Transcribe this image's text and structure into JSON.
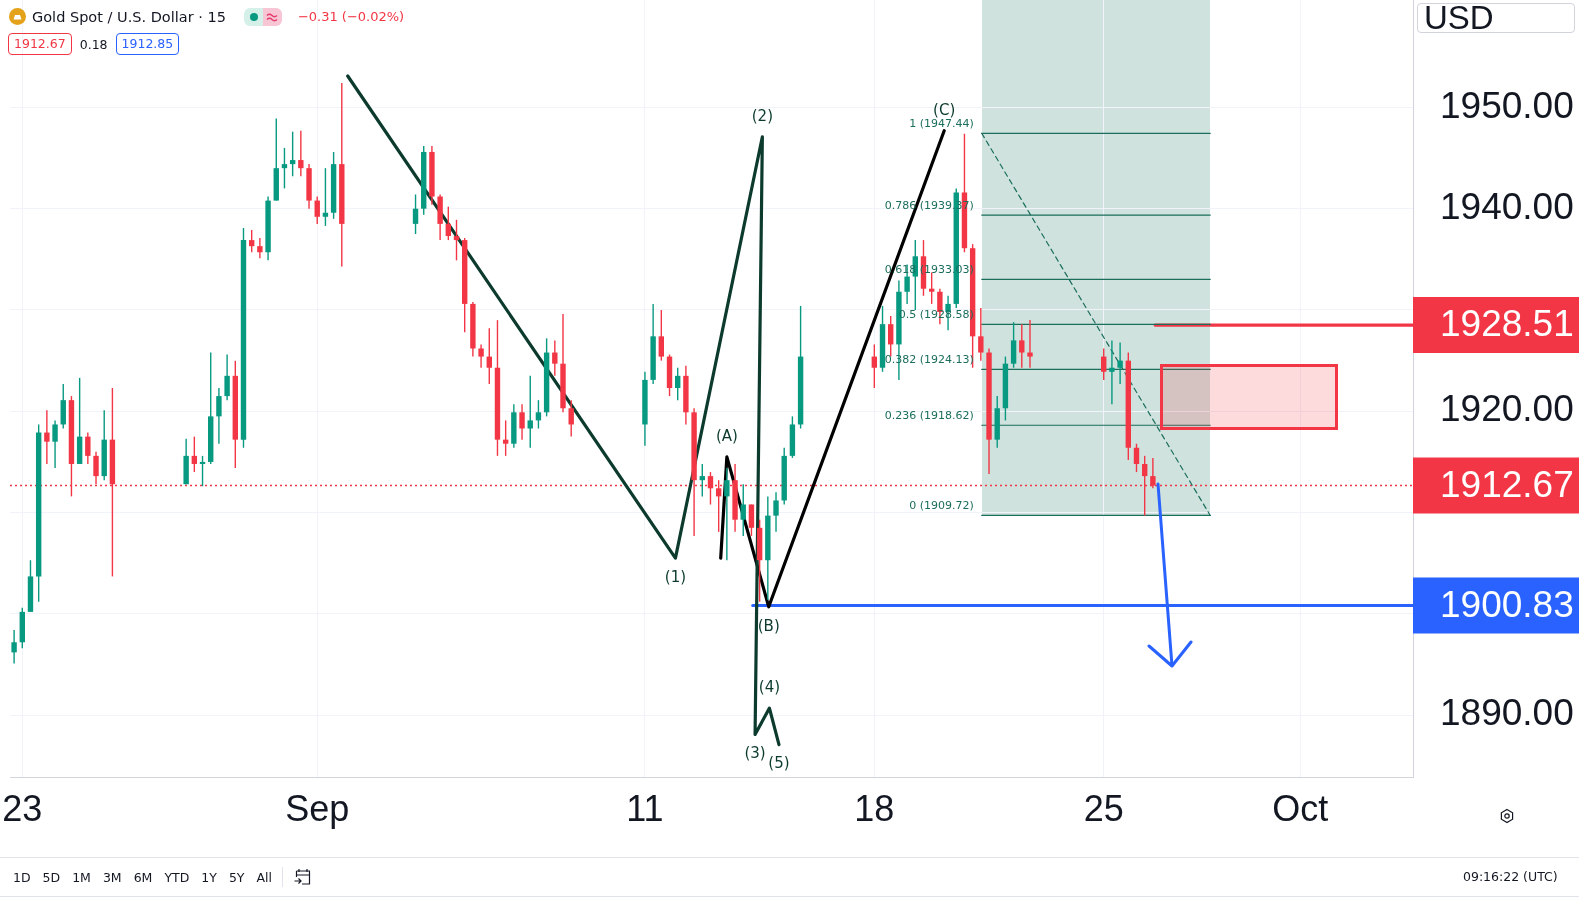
{
  "chart_data": {
    "type": "candlestick",
    "title": "Gold Spot / U.S. Dollar · 15",
    "ylabel": "USD",
    "x": [
      "--08-22T18:00",
      "--08-23T00:00",
      "--08-23T06:00",
      "--08-23T12:00",
      "--08-23T18:00",
      "--08-24T00:00",
      "--08-24T06:00",
      "--08-24T12:00",
      "--08-24T18:00",
      "--08-25T00:00",
      "--08-25T06:00",
      "--08-25T12:00",
      "--08-25T18:00",
      "--08-28T00:00",
      "--08-28T06:00",
      "--08-28T12:00",
      "--08-28T18:00",
      "--08-29T00:00",
      "--08-29T06:00",
      "--08-29T12:00",
      "--08-29T18:00",
      "--08-30T00:00",
      "--08-30T06:00",
      "--08-30T12:00",
      "--08-30T18:00",
      "--08-31T00:00",
      "--08-31T06:00",
      "--08-31T12:00",
      "--08-31T18:00",
      "--09-01T00:00",
      "--09-01T06:00",
      "--09-01T12:00",
      "--09-01T18:00",
      "--09-04T00:00",
      "--09-04T06:00",
      "--09-04T12:00",
      "--09-04T18:00",
      "--09-05T00:00",
      "--09-05T06:00",
      "--09-05T12:00",
      "--09-05T18:00",
      "--09-06T00:00",
      "--09-06T06:00",
      "--09-06T12:00",
      "--09-06T18:00",
      "--09-07T00:00",
      "--09-07T06:00",
      "--09-07T12:00",
      "--09-07T18:00",
      "--09-08T00:00",
      "--09-08T06:00",
      "--09-08T12:00",
      "--09-08T18:00",
      "--09-11T00:00",
      "--09-11T06:00",
      "--09-11T12:00",
      "--09-11T18:00",
      "--09-12T00:00",
      "--09-12T06:00",
      "--09-12T12:00",
      "--09-12T18:00",
      "--09-13T00:00",
      "--09-13T06:00",
      "--09-13T12:00",
      "--09-13T18:00",
      "--09-14T00:00",
      "--09-14T06:00",
      "--09-14T12:00",
      "--09-14T18:00",
      "--09-15T00:00",
      "--09-15T06:00",
      "--09-15T12:00",
      "--09-15T18:00",
      "--09-18T00:00",
      "--09-18T06:00",
      "--09-18T12:00",
      "--09-18T18:00",
      "--09-19T00:00",
      "--09-19T06:00",
      "--09-19T12:00",
      "--09-19T18:00",
      "--09-20T00:00",
      "--09-20T06:00",
      "--09-20T12:00",
      "--09-20T18:00",
      "--09-21T00:00",
      "--09-21T06:00",
      "--09-21T12:00",
      "--09-21T18:00",
      "--09-22T00:00",
      "--09-22T06:00",
      "--09-22T12:00",
      "--09-22T18:00",
      "--09-25T00:00",
      "--09-25T06:00",
      "--09-25T12:00",
      "--09-25T18:00",
      "--09-26T00:00",
      "--09-26T06:00",
      "--09-26T12:00"
    ],
    "ohlc": [
      [
        1896.2,
        1898.4,
        1895.1,
        1897.2
      ],
      [
        1897.2,
        1900.6,
        1896.6,
        1900.2
      ],
      [
        1900.2,
        1905.3,
        1900.2,
        1903.7
      ],
      [
        1903.7,
        1918.7,
        1901.2,
        1917.9
      ],
      [
        1917.9,
        1920.1,
        1914.8,
        1917.0
      ],
      [
        1917.0,
        1919.1,
        1914.4,
        1918.7
      ],
      [
        1918.7,
        1922.7,
        1918.3,
        1921.1
      ],
      [
        1921.1,
        1921.5,
        1911.6,
        1914.8
      ],
      [
        1914.8,
        1923.3,
        1914.8,
        1917.5
      ],
      [
        1917.5,
        1917.9,
        1914.8,
        1915.6
      ],
      [
        1915.6,
        1916.0,
        1912.8,
        1913.6
      ],
      [
        1913.6,
        1920.1,
        1913.2,
        1917.2
      ],
      [
        1917.2,
        1922.3,
        1903.7,
        1912.8
      ],
      [
        1912.8,
        1917.3,
        1912.8,
        1915.6
      ],
      [
        1915.6,
        1917.5,
        1914.0,
        1914.8
      ],
      [
        1914.8,
        1915.6,
        1912.6,
        1915.0
      ],
      [
        1915.0,
        1925.8,
        1914.8,
        1919.5
      ],
      [
        1919.5,
        1922.3,
        1916.8,
        1921.5
      ],
      [
        1921.5,
        1925.6,
        1921.1,
        1923.5
      ],
      [
        1923.5,
        1925.0,
        1914.4,
        1917.2
      ],
      [
        1917.2,
        1938.1,
        1916.4,
        1936.9
      ],
      [
        1936.9,
        1937.9,
        1935.7,
        1936.3
      ],
      [
        1936.3,
        1937.1,
        1935.1,
        1935.7
      ],
      [
        1935.7,
        1941.2,
        1934.9,
        1940.8
      ],
      [
        1940.8,
        1948.9,
        1940.8,
        1944.0
      ],
      [
        1944.0,
        1946.0,
        1942.0,
        1944.4
      ],
      [
        1944.4,
        1947.6,
        1943.2,
        1944.8
      ],
      [
        1944.8,
        1947.7,
        1943.2,
        1944.0
      ],
      [
        1944.0,
        1944.4,
        1940.0,
        1940.8
      ],
      [
        1940.8,
        1941.2,
        1938.5,
        1939.2
      ],
      [
        1939.2,
        1944.0,
        1938.3,
        1939.6
      ],
      [
        1939.6,
        1945.6,
        1939.0,
        1944.4
      ],
      [
        1944.4,
        1952.4,
        1934.3,
        1938.5
      ],
      [
        1938.5,
        1941.4,
        1937.5,
        1940.0
      ],
      [
        1940.0,
        1946.2,
        1939.4,
        1945.6
      ],
      [
        1945.6,
        1946.2,
        1940.4,
        1941.2
      ],
      [
        1941.2,
        1941.4,
        1936.9,
        1938.5
      ],
      [
        1938.5,
        1940.2,
        1936.9,
        1937.3
      ],
      [
        1937.3,
        1938.9,
        1934.9,
        1936.9
      ],
      [
        1936.9,
        1937.1,
        1927.8,
        1930.6
      ],
      [
        1930.6,
        1930.8,
        1925.4,
        1926.2
      ],
      [
        1926.2,
        1926.6,
        1924.3,
        1925.4
      ],
      [
        1925.4,
        1928.2,
        1922.7,
        1924.3
      ],
      [
        1924.3,
        1929.0,
        1915.6,
        1917.2
      ],
      [
        1917.2,
        1919.1,
        1915.6,
        1916.8
      ],
      [
        1916.8,
        1920.7,
        1916.4,
        1919.9
      ],
      [
        1919.9,
        1920.7,
        1917.2,
        1918.3
      ],
      [
        1918.3,
        1923.5,
        1916.4,
        1919.1
      ],
      [
        1919.1,
        1921.1,
        1918.3,
        1919.9
      ],
      [
        1919.9,
        1927.2,
        1919.5,
        1925.8
      ],
      [
        1925.8,
        1927.0,
        1923.5,
        1924.7
      ],
      [
        1924.7,
        1929.6,
        1919.9,
        1920.3
      ],
      [
        1920.3,
        1921.1,
        1917.5,
        1918.7
      ],
      [
        1918.7,
        1923.9,
        1916.6,
        1923.1
      ],
      [
        1923.1,
        1930.6,
        1922.7,
        1927.4
      ],
      [
        1927.4,
        1930.0,
        1925.0,
        1925.4
      ],
      [
        1925.4,
        1925.6,
        1921.5,
        1922.3
      ],
      [
        1922.3,
        1924.3,
        1921.1,
        1923.5
      ],
      [
        1923.5,
        1924.5,
        1918.7,
        1919.9
      ],
      [
        1919.9,
        1920.3,
        1907.7,
        1913.2
      ],
      [
        1913.2,
        1914.8,
        1911.6,
        1913.6
      ],
      [
        1913.6,
        1914.0,
        1910.8,
        1912.4
      ],
      [
        1912.4,
        1913.2,
        1908.1,
        1911.6
      ],
      [
        1911.6,
        1914.4,
        1905.3,
        1913.2
      ],
      [
        1913.2,
        1914.8,
        1908.1,
        1909.3
      ],
      [
        1909.3,
        1912.8,
        1907.7,
        1910.8
      ],
      [
        1910.8,
        1910.8,
        1907.7,
        1908.5
      ],
      [
        1908.5,
        1909.3,
        1901.2,
        1905.3
      ],
      [
        1905.3,
        1911.6,
        1901.4,
        1909.7
      ],
      [
        1909.7,
        1912.0,
        1908.1,
        1911.2
      ],
      [
        1911.2,
        1916.4,
        1910.8,
        1915.6
      ],
      [
        1915.6,
        1919.5,
        1915.4,
        1918.7
      ],
      [
        1918.7,
        1930.4,
        1918.3,
        1925.4
      ],
      [
        1925.4,
        1926.6,
        1922.3,
        1924.3
      ],
      [
        1924.3,
        1930.4,
        1923.9,
        1928.6
      ],
      [
        1928.6,
        1929.4,
        1925.4,
        1926.6
      ],
      [
        1926.6,
        1932.9,
        1923.1,
        1931.8
      ],
      [
        1931.8,
        1934.5,
        1930.6,
        1933.3
      ],
      [
        1933.3,
        1936.9,
        1930.0,
        1935.3
      ],
      [
        1935.3,
        1936.9,
        1931.4,
        1932.1
      ],
      [
        1932.1,
        1933.7,
        1930.6,
        1931.8
      ],
      [
        1931.8,
        1932.1,
        1928.6,
        1929.8
      ],
      [
        1929.8,
        1931.4,
        1928.0,
        1930.6
      ],
      [
        1930.6,
        1942.0,
        1930.2,
        1941.6
      ],
      [
        1941.6,
        1947.4,
        1935.7,
        1936.1
      ],
      [
        1936.1,
        1936.5,
        1924.3,
        1927.4
      ],
      [
        1927.4,
        1930.2,
        1925.0,
        1925.8
      ],
      [
        1925.8,
        1926.2,
        1913.8,
        1917.2
      ],
      [
        1917.2,
        1921.5,
        1916.4,
        1920.3
      ],
      [
        1920.3,
        1925.4,
        1919.1,
        1924.7
      ],
      [
        1924.7,
        1928.8,
        1924.3,
        1927.0
      ],
      [
        1927.0,
        1928.6,
        1924.3,
        1925.8
      ],
      [
        1925.8,
        1929.0,
        1924.3,
        1925.4
      ],
      [
        1925.4,
        1926.2,
        1923.1,
        1923.9
      ],
      [
        1923.9,
        1927.0,
        1920.7,
        1924.3
      ],
      [
        1924.3,
        1926.8,
        1922.7,
        1925.0
      ],
      [
        1925.0,
        1925.8,
        1915.2,
        1916.4
      ],
      [
        1916.4,
        1916.8,
        1914.0,
        1914.8
      ],
      [
        1914.8,
        1915.6,
        1909.7,
        1913.6
      ],
      [
        1913.6,
        1915.4,
        1912.4,
        1912.67
      ]
    ],
    "colors": [
      "#089981",
      "#089981",
      "#089981",
      "#089981",
      "#f23645",
      "#089981",
      "#089981",
      "#f23645",
      "#089981",
      "#f23645",
      "#f23645",
      "#089981",
      "#f23645",
      "#089981",
      "#f23645",
      "#089981",
      "#089981",
      "#089981",
      "#089981",
      "#f23645",
      "#089981",
      "#f23645",
      "#f23645",
      "#089981",
      "#089981",
      "#089981",
      "#089981",
      "#f23645",
      "#f23645",
      "#f23645",
      "#089981",
      "#089981",
      "#f23645",
      "#089981",
      "#089981",
      "#f23645",
      "#f23645",
      "#f23645",
      "#f23645",
      "#f23645",
      "#f23645",
      "#f23645",
      "#f23645",
      "#f23645",
      "#f23645",
      "#089981",
      "#f23645",
      "#089981",
      "#089981",
      "#089981",
      "#f23645",
      "#f23645",
      "#f23645",
      "#089981",
      "#089981",
      "#f23645",
      "#f23645",
      "#089981",
      "#f23645",
      "#f23645",
      "#089981",
      "#f23645",
      "#f23645",
      "#089981",
      "#f23645",
      "#089981",
      "#f23645",
      "#f23645",
      "#089981",
      "#089981",
      "#089981",
      "#089981",
      "#089981",
      "#f23645",
      "#089981",
      "#f23645",
      "#089981",
      "#089981",
      "#089981",
      "#f23645",
      "#f23645",
      "#f23645",
      "#089981",
      "#089981",
      "#f23645",
      "#f23645",
      "#f23645",
      "#f23645",
      "#089981",
      "#089981",
      "#089981",
      "#f23645",
      "#f23645",
      "#f23645",
      "#089981",
      "#089981",
      "#f23645",
      "#f23645",
      "#f23645",
      "#f23645"
    ],
    "series": [
      {
        "type": "line",
        "x": [
          "--09-01T22:20",
          "--09-11T22:20",
          "--09-14T14:00",
          "--09-14T08:40",
          "--09-14T19:10",
          "--09-15T02:10"
        ],
        "values": [
          1953.1,
          1905.5,
          1947.1,
          1888.1,
          1890.7,
          1887.1
        ],
        "color": "#0c3b2e"
      },
      {
        "type": "line",
        "x": [
          "--09-13T07:30",
          "--09-13T12:00",
          "--09-14T18:40",
          "--09-20T03:10"
        ],
        "values": [
          1905.5,
          1915.5,
          1900.7,
          1947.7
        ],
        "color": "#000000"
      },
      {
        "type": "line",
        "name": "1 (1947.44)",
        "x": [
          "--09-21T06:40",
          "--09-28T06:00"
        ],
        "values": [
          1947.44,
          1947.44
        ],
        "color": "#1b6e5c"
      },
      {
        "type": "line",
        "name": "0.786 (1939.37)",
        "x": [
          "--09-21T06:40",
          "--09-28T06:00"
        ],
        "values": [
          1939.37,
          1939.37
        ],
        "color": "#1b6e5c"
      },
      {
        "type": "line",
        "name": "0.618 (1933.03)",
        "x": [
          "--09-21T06:40",
          "--09-28T06:00"
        ],
        "values": [
          1933.03,
          1933.03
        ],
        "color": "#1b6e5c"
      },
      {
        "type": "line",
        "name": "0.5 (1928.58)",
        "x": [
          "--09-21T06:40",
          "--09-28T06:00"
        ],
        "values": [
          1928.58,
          1928.58
        ],
        "color": "#1b6e5c"
      },
      {
        "type": "line",
        "name": "0.382 (1924.13)",
        "x": [
          "--09-21T06:40",
          "--09-28T06:00"
        ],
        "values": [
          1924.13,
          1924.13
        ],
        "color": "#1b6e5c"
      },
      {
        "type": "line",
        "name": "0.236 (1918.62)",
        "x": [
          "--09-21T06:40",
          "--09-28T06:00"
        ],
        "values": [
          1918.62,
          1918.62
        ],
        "color": "#1b6e5c"
      },
      {
        "type": "line",
        "name": "0 (1909.72)",
        "x": [
          "--09-21T06:40",
          "--09-28T06:00"
        ],
        "values": [
          1909.72,
          1909.72
        ],
        "color": "#1b6e5c"
      },
      {
        "type": "line",
        "x": [
          "--09-21T06:40",
          "--09-28T06:00"
        ],
        "values": [
          1947.44,
          1909.72
        ],
        "color": "#1b6e5c",
        "line_style": "dashed"
      },
      {
        "type": "line",
        "x": [
          "--09-26T13:40",
          "--10-04T10:30"
        ],
        "values": [
          1928.51,
          1928.51
        ],
        "color": "#f23645",
        "value_labels": [
          null,
          "1928.51"
        ]
      },
      {
        "type": "line",
        "x": [
          "--09-14T07:00",
          "--10-04T10:30"
        ],
        "values": [
          1900.83,
          1900.83
        ],
        "color": "#2962ff",
        "value_labels": [
          null,
          "1900.83"
        ]
      }
    ],
    "ref_lines": [
      {
        "axis": "y",
        "value": 1912.67,
        "label": "1912.67",
        "color": "#f23645",
        "line_style": "dotted"
      }
    ],
    "annotations": [
      "−0.31 (−0.02%)",
      "1912.67",
      "0.18",
      "1912.85",
      "1D",
      "5D",
      "1M",
      "3M",
      "6M",
      "YTD",
      "1Y",
      "5Y",
      "All",
      "09:16:22 (UTC)",
      {
        "text": "(1)",
        "x": "--09-11T22:20",
        "y": 1905.5
      },
      {
        "text": "(2)",
        "x": "--09-14T14:00",
        "y": 1947.1
      },
      {
        "text": "(3)",
        "x": "--09-14T08:40",
        "y": 1888.1
      },
      {
        "text": "(4)",
        "x": "--09-14T19:10",
        "y": 1890.7
      },
      {
        "text": "(5)",
        "x": "--09-15T02:10",
        "y": 1887.1
      },
      {
        "text": "(A)",
        "x": "--09-13T12:00",
        "y": 1915.5
      },
      {
        "text": "(B)",
        "x": "--09-14T18:40",
        "y": 1900.7
      },
      {
        "text": "(C)",
        "x": "--09-20T03:10",
        "y": 1947.7
      }
    ],
    "xlim": [
      "--08-22T15:00",
      "--10-04T10:30"
    ],
    "ylim": [
      1883.9,
      1960.6
    ],
    "xticks": [
      {
        "value": "--08-23",
        "label": "23"
      },
      {
        "value": "--09-01",
        "label": "Sep"
      },
      {
        "value": "--09-11",
        "label": "11"
      },
      {
        "value": "--09-18",
        "label": "18"
      },
      {
        "value": "--09-25",
        "label": "25"
      },
      {
        "value": "--10-01",
        "label": "Oct"
      }
    ],
    "yticks": [
      {
        "value": 1890,
        "label": "1890.00"
      },
      {
        "value": 1900,
        "label": null
      },
      {
        "value": 1910,
        "label": null
      },
      {
        "value": 1920,
        "label": "1920.00"
      },
      {
        "value": 1930,
        "label": null
      },
      {
        "value": 1940,
        "label": "1940.00"
      },
      {
        "value": 1950,
        "label": "1950.00"
      }
    ],
    "grid": true
  }
}
